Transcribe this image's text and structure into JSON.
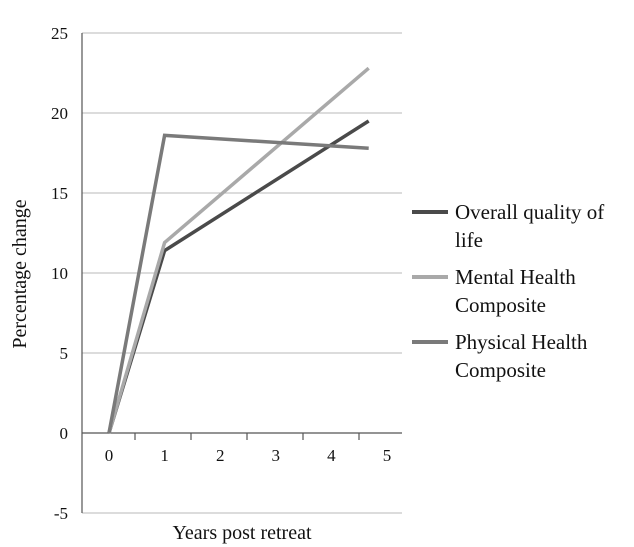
{
  "chart_data": {
    "type": "line",
    "title": "",
    "xlabel": "Years post retreat",
    "ylabel": "Percentage change",
    "xlim": [
      0,
      5
    ],
    "ylim": [
      -5,
      25
    ],
    "x_ticks": [
      "0",
      "1",
      "2",
      "3",
      "4",
      "5"
    ],
    "y_ticks": [
      "-5",
      "0",
      "5",
      "10",
      "15",
      "20",
      "25"
    ],
    "grid": true,
    "legend_position": "right",
    "series": [
      {
        "name": "Overall quality of life",
        "legend_lines": [
          "Overall quality of",
          "life"
        ],
        "color": "#4a4a4a",
        "x": [
          0,
          1,
          5
        ],
        "y": [
          0,
          11.4,
          19.5
        ]
      },
      {
        "name": "Mental Health Composite",
        "legend_lines": [
          "Mental Health",
          "Composite"
        ],
        "color": "#a9a9a9",
        "x": [
          0,
          1,
          5
        ],
        "y": [
          0,
          11.9,
          22.8
        ]
      },
      {
        "name": "Physical Health Composite",
        "legend_lines": [
          "Physical Health",
          "Composite"
        ],
        "color": "#7a7a7a",
        "x": [
          0,
          1,
          5
        ],
        "y": [
          0,
          18.6,
          17.8
        ]
      }
    ]
  }
}
